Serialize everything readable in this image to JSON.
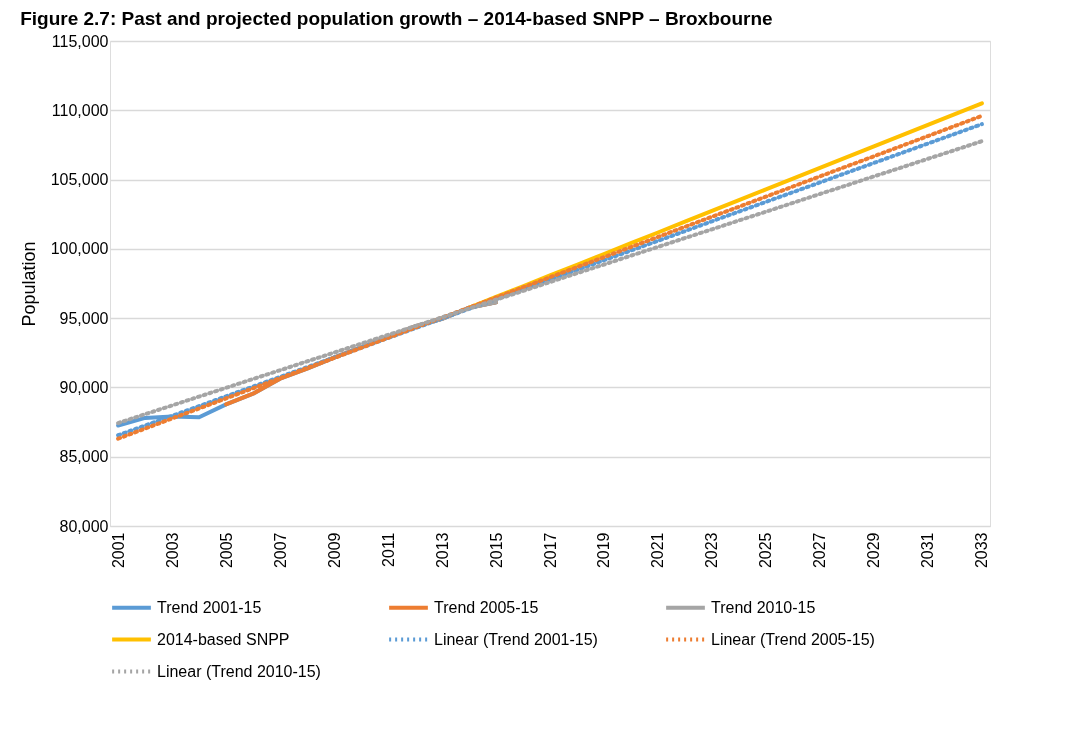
{
  "chart_data": {
    "type": "line",
    "title": "Figure 2.7: Past and projected population growth – 2014-based SNPP – Broxbourne",
    "ylabel": "Population",
    "categories": [
      "2001",
      null,
      "2003",
      null,
      "2005",
      null,
      "2007",
      null,
      "2009",
      null,
      "2011",
      null,
      "2013",
      null,
      "2015",
      null,
      "2017",
      null,
      "2019",
      null,
      "2021",
      null,
      "2023",
      null,
      "2025",
      null,
      "2027",
      null,
      "2029",
      null,
      "2031",
      null,
      "2033"
    ],
    "ylim": [
      80000,
      115000
    ],
    "yticks": [
      {
        "value": 80000,
        "label": "80,000"
      },
      {
        "value": 85000,
        "label": "85,000"
      },
      {
        "value": 90000,
        "label": "90,000"
      },
      {
        "value": 95000,
        "label": "95,000"
      },
      {
        "value": 100000,
        "label": "100,000"
      },
      {
        "value": 105000,
        "label": "105,000"
      },
      {
        "value": 110000,
        "label": "110,000"
      },
      {
        "value": 115000,
        "label": "115,000"
      }
    ],
    "grid": "y",
    "legend": "bottom",
    "marker": "none",
    "series": [
      {
        "name": "Trend 2001-15",
        "color": "#5b9bd5",
        "line_style": "solid",
        "values": [
          87250,
          87800,
          87900,
          87850,
          88780,
          89550,
          90630,
          91350,
          92150,
          92900,
          93630,
          94400,
          94950,
          95750,
          96150,
          null,
          null,
          null,
          null,
          null,
          null,
          null,
          null,
          null,
          null,
          null,
          null,
          null,
          null,
          null,
          null,
          null,
          null
        ]
      },
      {
        "name": "Trend 2005-15",
        "color": "#ed7d31",
        "line_style": "solid",
        "values": [
          null,
          null,
          null,
          null,
          88780,
          89550,
          90630,
          91350,
          92150,
          92900,
          93630,
          94400,
          94950,
          95750,
          96150,
          null,
          null,
          null,
          null,
          null,
          null,
          null,
          null,
          null,
          null,
          null,
          null,
          null,
          null,
          null,
          null,
          null,
          null
        ]
      },
      {
        "name": "Trend 2010-15",
        "color": "#a5a5a5",
        "line_style": "solid",
        "values": [
          null,
          null,
          null,
          null,
          null,
          null,
          null,
          null,
          null,
          92900,
          93630,
          94400,
          94950,
          95750,
          96150,
          null,
          null,
          null,
          null,
          null,
          null,
          null,
          null,
          null,
          null,
          null,
          null,
          null,
          null,
          null,
          null,
          null,
          null
        ]
      },
      {
        "name": "2014-based SNPP",
        "color": "#ffc000",
        "line_style": "solid",
        "values": [
          null,
          null,
          null,
          null,
          null,
          null,
          null,
          null,
          null,
          null,
          null,
          null,
          null,
          95750,
          96530,
          97300,
          98080,
          98850,
          99630,
          100410,
          101180,
          101960,
          102740,
          103510,
          104290,
          105070,
          105840,
          106620,
          107390,
          108170,
          108950,
          109720,
          110500
        ]
      },
      {
        "name": "Linear (Trend 2001-15)",
        "color": "#5b9bd5",
        "line_style": "dotted",
        "values": [
          86550,
          87250,
          87950,
          88650,
          89360,
          90060,
          90760,
          91460,
          92160,
          92860,
          93570,
          94270,
          94970,
          95670,
          96370,
          97070,
          97780,
          98480,
          99180,
          99880,
          100580,
          101280,
          101990,
          102690,
          103390,
          104090,
          104790,
          105500,
          106200,
          106900,
          107600,
          108300,
          109000
        ]
      },
      {
        "name": "Linear (Trend 2005-15)",
        "color": "#ed7d31",
        "line_style": "dotted",
        "values": [
          86300,
          87030,
          87760,
          88480,
          89210,
          89940,
          90670,
          91400,
          92120,
          92850,
          93580,
          94310,
          95040,
          95760,
          96490,
          97220,
          97950,
          98680,
          99400,
          100130,
          100860,
          101590,
          102320,
          103040,
          103770,
          104500,
          105230,
          105960,
          106680,
          107410,
          108140,
          108870,
          109600
        ]
      },
      {
        "name": "Linear (Trend 2010-15)",
        "color": "#a5a5a5",
        "line_style": "dotted",
        "values": [
          87430,
          88070,
          88700,
          89340,
          89970,
          90610,
          91240,
          91880,
          92510,
          93150,
          93790,
          94420,
          95060,
          95690,
          96330,
          96960,
          97600,
          98240,
          98870,
          99510,
          100140,
          100780,
          101410,
          102050,
          102680,
          103320,
          103960,
          104590,
          105230,
          105860,
          106500,
          107130,
          107770
        ]
      }
    ]
  }
}
